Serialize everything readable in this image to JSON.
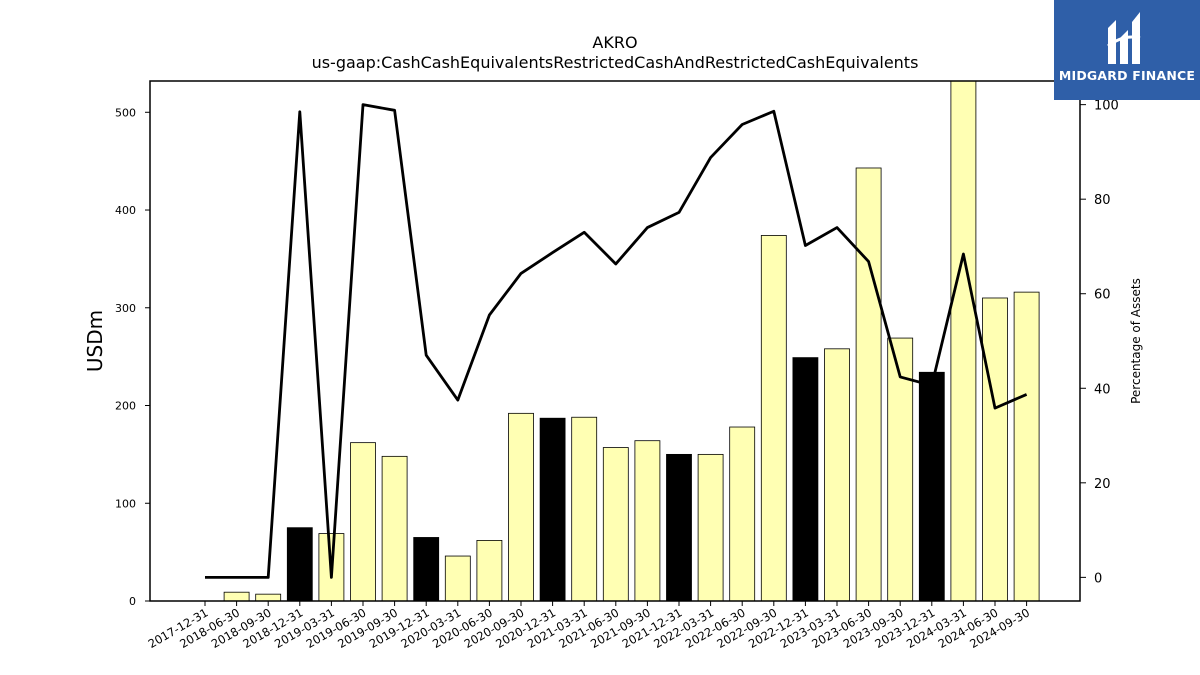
{
  "chart_data": {
    "type": "bar",
    "title": "AKRO",
    "subtitle": "us-gaap:CashCashEquivalentsRestrictedCashAndRestrictedCashEquivalents",
    "ylabel": "USDm",
    "y2label": "Percentage of Assets",
    "ylim": [
      0,
      532
    ],
    "y2lim": [
      -5,
      105
    ],
    "yticks": [
      0,
      100,
      200,
      300,
      400,
      500
    ],
    "y2ticks": [
      0,
      20,
      40,
      60,
      80,
      100
    ],
    "grid": false,
    "bar_colors": {
      "quarter": "#ffffb3",
      "year_end": "#000000"
    },
    "line_color": "#000000",
    "categories": [
      "2017-12-31",
      "2018-06-30",
      "2018-09-30",
      "2018-12-31",
      "2019-03-31",
      "2019-06-30",
      "2019-09-30",
      "2019-12-31",
      "2020-03-31",
      "2020-06-30",
      "2020-09-30",
      "2020-12-31",
      "2021-03-31",
      "2021-06-30",
      "2021-09-30",
      "2021-12-31",
      "2022-03-31",
      "2022-06-30",
      "2022-09-30",
      "2022-12-31",
      "2023-03-31",
      "2023-06-30",
      "2023-09-30",
      "2023-12-31",
      "2024-03-31",
      "2024-06-30",
      "2024-09-30"
    ],
    "series": [
      {
        "kind": "bar",
        "values": [
          0,
          9,
          7,
          75,
          69,
          162,
          148,
          65,
          46,
          62,
          192,
          187,
          188,
          157,
          164,
          150,
          150,
          178,
          374,
          249,
          258,
          443,
          269,
          234,
          540,
          310,
          316
        ],
        "year_end": [
          true,
          false,
          false,
          true,
          false,
          false,
          false,
          true,
          false,
          false,
          false,
          true,
          false,
          false,
          false,
          true,
          false,
          false,
          false,
          true,
          false,
          false,
          false,
          true,
          false,
          false,
          false
        ]
      },
      {
        "kind": "line",
        "axis": "right",
        "values": [
          0,
          0,
          0,
          98.5,
          0,
          100,
          98.8,
          47,
          37.5,
          55.5,
          64.3,
          68.7,
          73,
          66.3,
          74,
          77.2,
          88.8,
          95.8,
          98.6,
          70.2,
          74,
          66.8,
          42.4,
          40.6,
          68.4,
          35.8,
          38.7
        ]
      }
    ]
  },
  "branding": {
    "text": "MIDGARD FINANCE",
    "background": "#2f5fa8"
  }
}
